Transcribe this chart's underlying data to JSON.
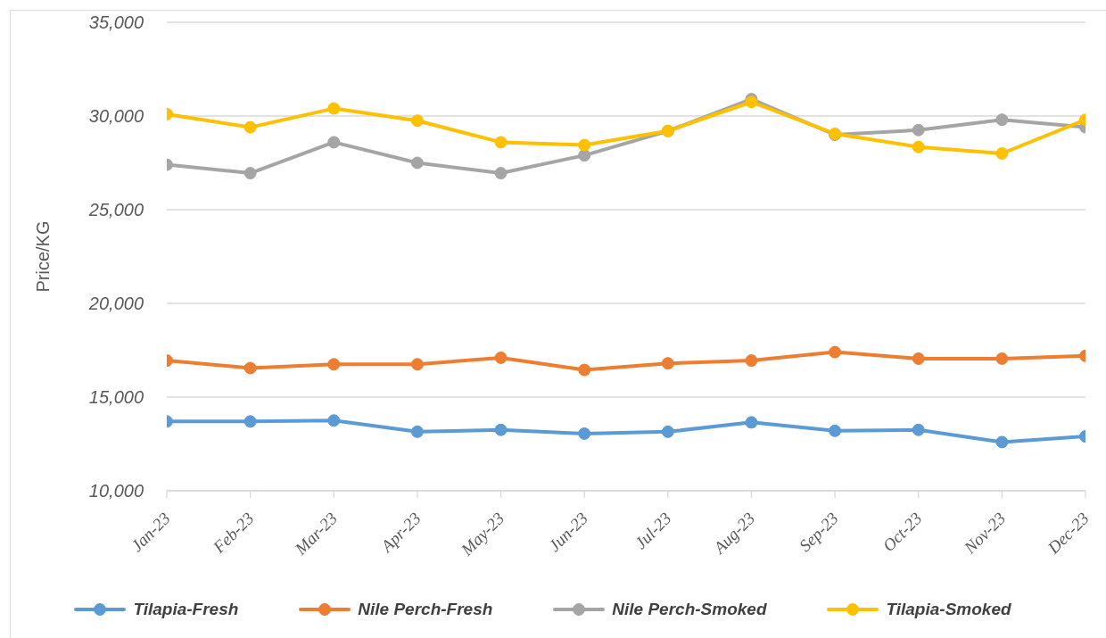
{
  "chart_data": {
    "type": "line",
    "ylabel": "Price/KG",
    "categories": [
      "Jan-23",
      "Feb-23",
      "Mar-23",
      "Apr-23",
      "May-23",
      "Jun-23",
      "Jul-23",
      "Aug-23",
      "Sep-23",
      "Oct-23",
      "Nov-23",
      "Dec-23"
    ],
    "series": [
      {
        "name": "Tilapia-Fresh",
        "color": "#5b9bd5",
        "values": [
          13700,
          13700,
          13750,
          13150,
          13250,
          13050,
          13150,
          13650,
          13200,
          13250,
          12600,
          12900
        ]
      },
      {
        "name": "Nile Perch-Fresh",
        "color": "#ed7d31",
        "values": [
          16950,
          16550,
          16750,
          16750,
          17100,
          16450,
          16800,
          16950,
          17400,
          17050,
          17050,
          17200
        ]
      },
      {
        "name": "Nile Perch-Smoked",
        "color": "#a5a5a5",
        "values": [
          27400,
          26950,
          28600,
          27500,
          26950,
          27900,
          29200,
          30900,
          29000,
          29250,
          29800,
          29400
        ]
      },
      {
        "name": "Tilapia-Smoked",
        "color": "#ffc000",
        "values": [
          30100,
          29400,
          30400,
          29750,
          28600,
          28450,
          29200,
          30750,
          29050,
          28350,
          28000,
          29800
        ]
      }
    ],
    "ylim": [
      10000,
      35000
    ],
    "yticks": [
      {
        "value": 10000,
        "label": "10,000"
      },
      {
        "value": 15000,
        "label": "15,000"
      },
      {
        "value": 20000,
        "label": "20,000"
      },
      {
        "value": 25000,
        "label": "25,000"
      },
      {
        "value": 30000,
        "label": "30,000"
      },
      {
        "value": 35000,
        "label": "35,000"
      }
    ],
    "grid": "y",
    "legend": "bottom",
    "marker": "circle",
    "line_style": "solid"
  }
}
